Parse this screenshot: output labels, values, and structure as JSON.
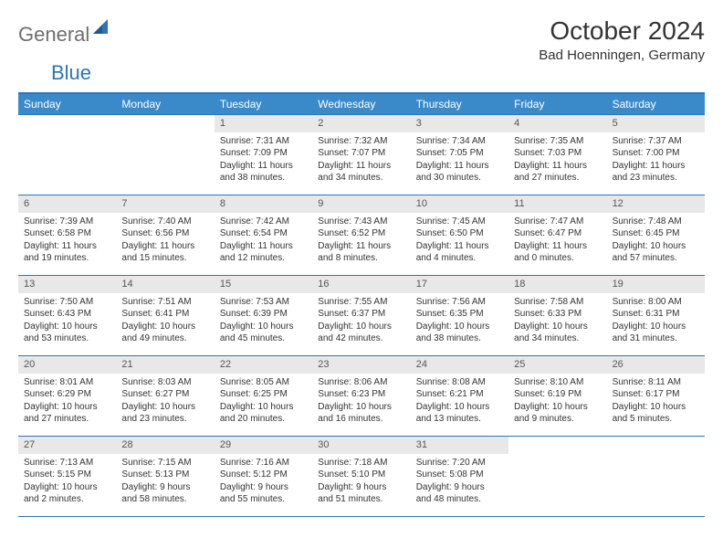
{
  "logo": {
    "general": "General",
    "blue": "Blue"
  },
  "title": "October 2024",
  "location": "Bad Hoenningen, Germany",
  "day_headers": [
    "Sunday",
    "Monday",
    "Tuesday",
    "Wednesday",
    "Thursday",
    "Friday",
    "Saturday"
  ],
  "colors": {
    "header_bg": "#3a8ac9",
    "border": "#2e75b6",
    "daynum_bg": "#e8e8e8",
    "text": "#333333",
    "logo_gray": "#6e6e6e",
    "logo_blue": "#2e75b6"
  },
  "blank_cells_before": 2,
  "days": [
    {
      "n": "1",
      "sunrise": "Sunrise: 7:31 AM",
      "sunset": "Sunset: 7:09 PM",
      "day1": "Daylight: 11 hours",
      "day2": "and 38 minutes."
    },
    {
      "n": "2",
      "sunrise": "Sunrise: 7:32 AM",
      "sunset": "Sunset: 7:07 PM",
      "day1": "Daylight: 11 hours",
      "day2": "and 34 minutes."
    },
    {
      "n": "3",
      "sunrise": "Sunrise: 7:34 AM",
      "sunset": "Sunset: 7:05 PM",
      "day1": "Daylight: 11 hours",
      "day2": "and 30 minutes."
    },
    {
      "n": "4",
      "sunrise": "Sunrise: 7:35 AM",
      "sunset": "Sunset: 7:03 PM",
      "day1": "Daylight: 11 hours",
      "day2": "and 27 minutes."
    },
    {
      "n": "5",
      "sunrise": "Sunrise: 7:37 AM",
      "sunset": "Sunset: 7:00 PM",
      "day1": "Daylight: 11 hours",
      "day2": "and 23 minutes."
    },
    {
      "n": "6",
      "sunrise": "Sunrise: 7:39 AM",
      "sunset": "Sunset: 6:58 PM",
      "day1": "Daylight: 11 hours",
      "day2": "and 19 minutes."
    },
    {
      "n": "7",
      "sunrise": "Sunrise: 7:40 AM",
      "sunset": "Sunset: 6:56 PM",
      "day1": "Daylight: 11 hours",
      "day2": "and 15 minutes."
    },
    {
      "n": "8",
      "sunrise": "Sunrise: 7:42 AM",
      "sunset": "Sunset: 6:54 PM",
      "day1": "Daylight: 11 hours",
      "day2": "and 12 minutes."
    },
    {
      "n": "9",
      "sunrise": "Sunrise: 7:43 AM",
      "sunset": "Sunset: 6:52 PM",
      "day1": "Daylight: 11 hours",
      "day2": "and 8 minutes."
    },
    {
      "n": "10",
      "sunrise": "Sunrise: 7:45 AM",
      "sunset": "Sunset: 6:50 PM",
      "day1": "Daylight: 11 hours",
      "day2": "and 4 minutes."
    },
    {
      "n": "11",
      "sunrise": "Sunrise: 7:47 AM",
      "sunset": "Sunset: 6:47 PM",
      "day1": "Daylight: 11 hours",
      "day2": "and 0 minutes."
    },
    {
      "n": "12",
      "sunrise": "Sunrise: 7:48 AM",
      "sunset": "Sunset: 6:45 PM",
      "day1": "Daylight: 10 hours",
      "day2": "and 57 minutes."
    },
    {
      "n": "13",
      "sunrise": "Sunrise: 7:50 AM",
      "sunset": "Sunset: 6:43 PM",
      "day1": "Daylight: 10 hours",
      "day2": "and 53 minutes."
    },
    {
      "n": "14",
      "sunrise": "Sunrise: 7:51 AM",
      "sunset": "Sunset: 6:41 PM",
      "day1": "Daylight: 10 hours",
      "day2": "and 49 minutes."
    },
    {
      "n": "15",
      "sunrise": "Sunrise: 7:53 AM",
      "sunset": "Sunset: 6:39 PM",
      "day1": "Daylight: 10 hours",
      "day2": "and 45 minutes."
    },
    {
      "n": "16",
      "sunrise": "Sunrise: 7:55 AM",
      "sunset": "Sunset: 6:37 PM",
      "day1": "Daylight: 10 hours",
      "day2": "and 42 minutes."
    },
    {
      "n": "17",
      "sunrise": "Sunrise: 7:56 AM",
      "sunset": "Sunset: 6:35 PM",
      "day1": "Daylight: 10 hours",
      "day2": "and 38 minutes."
    },
    {
      "n": "18",
      "sunrise": "Sunrise: 7:58 AM",
      "sunset": "Sunset: 6:33 PM",
      "day1": "Daylight: 10 hours",
      "day2": "and 34 minutes."
    },
    {
      "n": "19",
      "sunrise": "Sunrise: 8:00 AM",
      "sunset": "Sunset: 6:31 PM",
      "day1": "Daylight: 10 hours",
      "day2": "and 31 minutes."
    },
    {
      "n": "20",
      "sunrise": "Sunrise: 8:01 AM",
      "sunset": "Sunset: 6:29 PM",
      "day1": "Daylight: 10 hours",
      "day2": "and 27 minutes."
    },
    {
      "n": "21",
      "sunrise": "Sunrise: 8:03 AM",
      "sunset": "Sunset: 6:27 PM",
      "day1": "Daylight: 10 hours",
      "day2": "and 23 minutes."
    },
    {
      "n": "22",
      "sunrise": "Sunrise: 8:05 AM",
      "sunset": "Sunset: 6:25 PM",
      "day1": "Daylight: 10 hours",
      "day2": "and 20 minutes."
    },
    {
      "n": "23",
      "sunrise": "Sunrise: 8:06 AM",
      "sunset": "Sunset: 6:23 PM",
      "day1": "Daylight: 10 hours",
      "day2": "and 16 minutes."
    },
    {
      "n": "24",
      "sunrise": "Sunrise: 8:08 AM",
      "sunset": "Sunset: 6:21 PM",
      "day1": "Daylight: 10 hours",
      "day2": "and 13 minutes."
    },
    {
      "n": "25",
      "sunrise": "Sunrise: 8:10 AM",
      "sunset": "Sunset: 6:19 PM",
      "day1": "Daylight: 10 hours",
      "day2": "and 9 minutes."
    },
    {
      "n": "26",
      "sunrise": "Sunrise: 8:11 AM",
      "sunset": "Sunset: 6:17 PM",
      "day1": "Daylight: 10 hours",
      "day2": "and 5 minutes."
    },
    {
      "n": "27",
      "sunrise": "Sunrise: 7:13 AM",
      "sunset": "Sunset: 5:15 PM",
      "day1": "Daylight: 10 hours",
      "day2": "and 2 minutes."
    },
    {
      "n": "28",
      "sunrise": "Sunrise: 7:15 AM",
      "sunset": "Sunset: 5:13 PM",
      "day1": "Daylight: 9 hours",
      "day2": "and 58 minutes."
    },
    {
      "n": "29",
      "sunrise": "Sunrise: 7:16 AM",
      "sunset": "Sunset: 5:12 PM",
      "day1": "Daylight: 9 hours",
      "day2": "and 55 minutes."
    },
    {
      "n": "30",
      "sunrise": "Sunrise: 7:18 AM",
      "sunset": "Sunset: 5:10 PM",
      "day1": "Daylight: 9 hours",
      "day2": "and 51 minutes."
    },
    {
      "n": "31",
      "sunrise": "Sunrise: 7:20 AM",
      "sunset": "Sunset: 5:08 PM",
      "day1": "Daylight: 9 hours",
      "day2": "and 48 minutes."
    }
  ],
  "blank_cells_after": 2
}
